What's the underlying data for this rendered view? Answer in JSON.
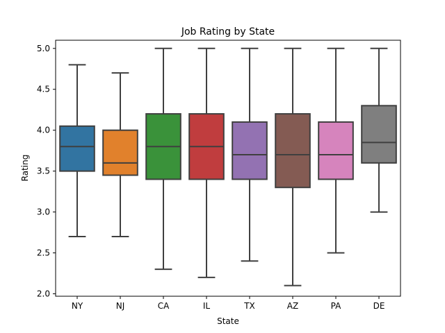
{
  "chart_data": {
    "type": "box",
    "title": "Job Rating by State",
    "xlabel": "State",
    "ylabel": "Rating",
    "ylim": [
      1.97,
      5.1
    ],
    "yticks": [
      2.0,
      2.5,
      3.0,
      3.5,
      4.0,
      4.5,
      5.0
    ],
    "ytick_labels": [
      "2.0",
      "2.5",
      "3.0",
      "3.5",
      "4.0",
      "4.5",
      "5.0"
    ],
    "categories": [
      "NY",
      "NJ",
      "CA",
      "IL",
      "TX",
      "AZ",
      "PA",
      "DE"
    ],
    "boxes": [
      {
        "category": "NY",
        "min": 2.7,
        "q1": 3.5,
        "median": 3.8,
        "q3": 4.05,
        "max": 4.8,
        "color": "#3274a1"
      },
      {
        "category": "NJ",
        "min": 2.7,
        "q1": 3.45,
        "median": 3.6,
        "q3": 4.0,
        "max": 4.7,
        "color": "#e1812c"
      },
      {
        "category": "CA",
        "min": 2.3,
        "q1": 3.4,
        "median": 3.8,
        "q3": 4.2,
        "max": 5.0,
        "color": "#3a923a"
      },
      {
        "category": "IL",
        "min": 2.2,
        "q1": 3.4,
        "median": 3.8,
        "q3": 4.2,
        "max": 5.0,
        "color": "#c03d3e"
      },
      {
        "category": "TX",
        "min": 2.4,
        "q1": 3.4,
        "median": 3.7,
        "q3": 4.1,
        "max": 5.0,
        "color": "#9372b2"
      },
      {
        "category": "AZ",
        "min": 2.1,
        "q1": 3.3,
        "median": 3.7,
        "q3": 4.2,
        "max": 5.0,
        "color": "#845b53"
      },
      {
        "category": "PA",
        "min": 2.5,
        "q1": 3.4,
        "median": 3.7,
        "q3": 4.1,
        "max": 5.0,
        "color": "#d684bd"
      },
      {
        "category": "DE",
        "min": 3.0,
        "q1": 3.6,
        "median": 3.85,
        "q3": 4.3,
        "max": 5.0,
        "color": "#7f7f7f"
      }
    ],
    "grid": false,
    "legend": "none"
  }
}
